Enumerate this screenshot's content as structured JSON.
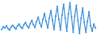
{
  "chart_data": {
    "type": "line",
    "color": "#3a8fd9",
    "marker": "circle",
    "grid": false,
    "tick_labels": false,
    "x": [
      1,
      2,
      3,
      4,
      5,
      6,
      7,
      8,
      9,
      10,
      11,
      12,
      13,
      14,
      15,
      16,
      17,
      18,
      19,
      20,
      21,
      22,
      23,
      24,
      25,
      26,
      27,
      28,
      29,
      30,
      31,
      32,
      33,
      34,
      35,
      36,
      37,
      38,
      39,
      40,
      41,
      42,
      43,
      44,
      45,
      46,
      47,
      48,
      49,
      50,
      51,
      52,
      53,
      54,
      55,
      56,
      57,
      58,
      59,
      60
    ],
    "values": [
      45,
      50,
      48,
      52,
      47,
      44,
      50,
      53,
      49,
      46,
      52,
      55,
      50,
      47,
      54,
      58,
      52,
      48,
      56,
      62,
      54,
      49,
      60,
      68,
      57,
      50,
      64,
      75,
      60,
      48,
      66,
      80,
      62,
      45,
      70,
      88,
      64,
      44,
      72,
      92,
      66,
      42,
      74,
      95,
      68,
      40,
      70,
      90,
      62,
      38,
      66,
      85,
      58,
      40,
      60,
      78,
      52,
      42,
      55,
      48
    ],
    "xlim": [
      1,
      60
    ],
    "ylim": [
      36,
      97
    ]
  }
}
